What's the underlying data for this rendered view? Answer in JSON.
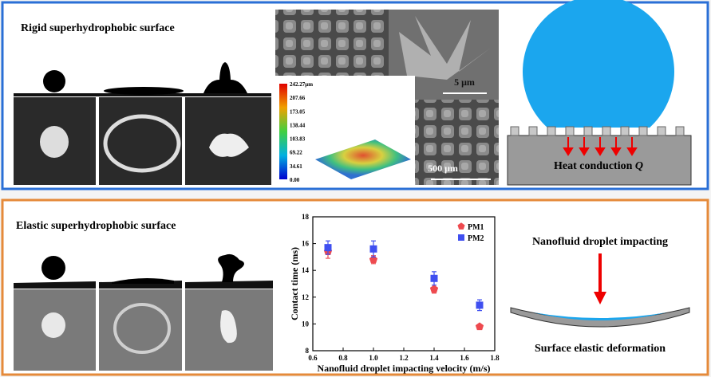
{
  "top_panel": {
    "title": "Rigid superhydrophobic surface",
    "colorbar_labels": [
      "242.27μm",
      "207.66",
      "173.05",
      "138.44",
      "103.83",
      "69.22",
      "34.61",
      "0.00"
    ],
    "scale_small": "5 μm",
    "scale_large": "500 μm",
    "heat_label": "Heat conduction ",
    "heat_symbol": "Q"
  },
  "bottom_panel": {
    "title": "Elastic superhydrophobic surface",
    "impact_label": "Nanofluid droplet impacting",
    "deformation_label": "Surface elastic deformation"
  },
  "chart_data": {
    "type": "scatter",
    "x_label": "Nanofluid droplet impacting velocity (m/s)",
    "y_label": "Contact time (ms)",
    "x": [
      0.7,
      1.0,
      1.4,
      1.7
    ],
    "series": [
      {
        "name": "PM1",
        "color": "#ee4a4f",
        "marker": "pentagon",
        "values": [
          15.4,
          14.8,
          12.6,
          9.8
        ],
        "errors": [
          0.5,
          0.3,
          0.3,
          0.1
        ]
      },
      {
        "name": "PM2",
        "color": "#3f4ff0",
        "marker": "square",
        "values": [
          15.7,
          15.6,
          13.4,
          11.4
        ],
        "errors": [
          0.5,
          0.6,
          0.5,
          0.4
        ]
      }
    ],
    "xlim": [
      0.6,
      1.8
    ],
    "xticks": [
      0.6,
      0.8,
      {
        "value": 1,
        "label": "1.0"
      },
      1.2,
      1.4,
      1.6,
      1.8
    ],
    "ylim": [
      8,
      18
    ],
    "yticks": [
      8,
      10,
      12,
      14,
      16,
      18
    ],
    "legend": "upper right"
  }
}
